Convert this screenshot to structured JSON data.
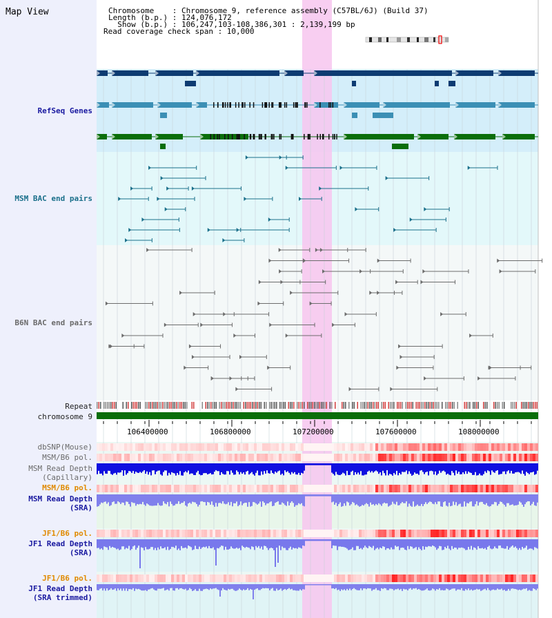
{
  "header": {
    "title": "Map View",
    "chromosome_line": "Chromosome    : Chromosome 9, reference assembly (C57BL/6J) (Build 37)",
    "length_line": "Length (b.p.) : 124,076,172",
    "show_line": "  Show (b.p.) : 106,247,103-108,386,301 : 2,139,199 bp",
    "coverage_line": "Read coverage check span : 10,000"
  },
  "tracks": {
    "refseq": "RefSeq Genes",
    "msm_bac": "MSM BAC end pairs",
    "b6n_bac": "B6N BAC end pairs",
    "repeat": "Repeat",
    "chromosome": "chromosome 9",
    "dbsnp": "dbSNP(Mouse)",
    "msm_b6_pol": "MSM/B6 pol.",
    "msm_depth_cap_1": "MSM Read Depth",
    "msm_depth_cap_2": "(Capillary)",
    "msm_b6_pol2": "MSM/B6 pol.",
    "msm_depth_sra_1": "MSM Read Depth",
    "msm_depth_sra_2": "(SRA)",
    "jf1_pol": "JF1/B6 pol.",
    "jf1_depth_1": "JF1 Read Depth",
    "jf1_depth_2": "(SRA)",
    "jf1_pol2": "JF1/B6 pol.",
    "jf1_trim_1": "JF1 Read Depth",
    "jf1_trim_2": "(SRA trimmed)"
  },
  "ruler": {
    "ticks": [
      "106400000",
      "106800000",
      "107200000",
      "107600000",
      "108000000"
    ]
  },
  "colors": {
    "navy": "#1a1aa0",
    "teal": "#1a6f8a",
    "highlight": "#f7c6ee",
    "gene_dark": "#0d3b72",
    "gene_mid": "#3b8fb5",
    "gene_green": "#0a6e0a"
  }
}
